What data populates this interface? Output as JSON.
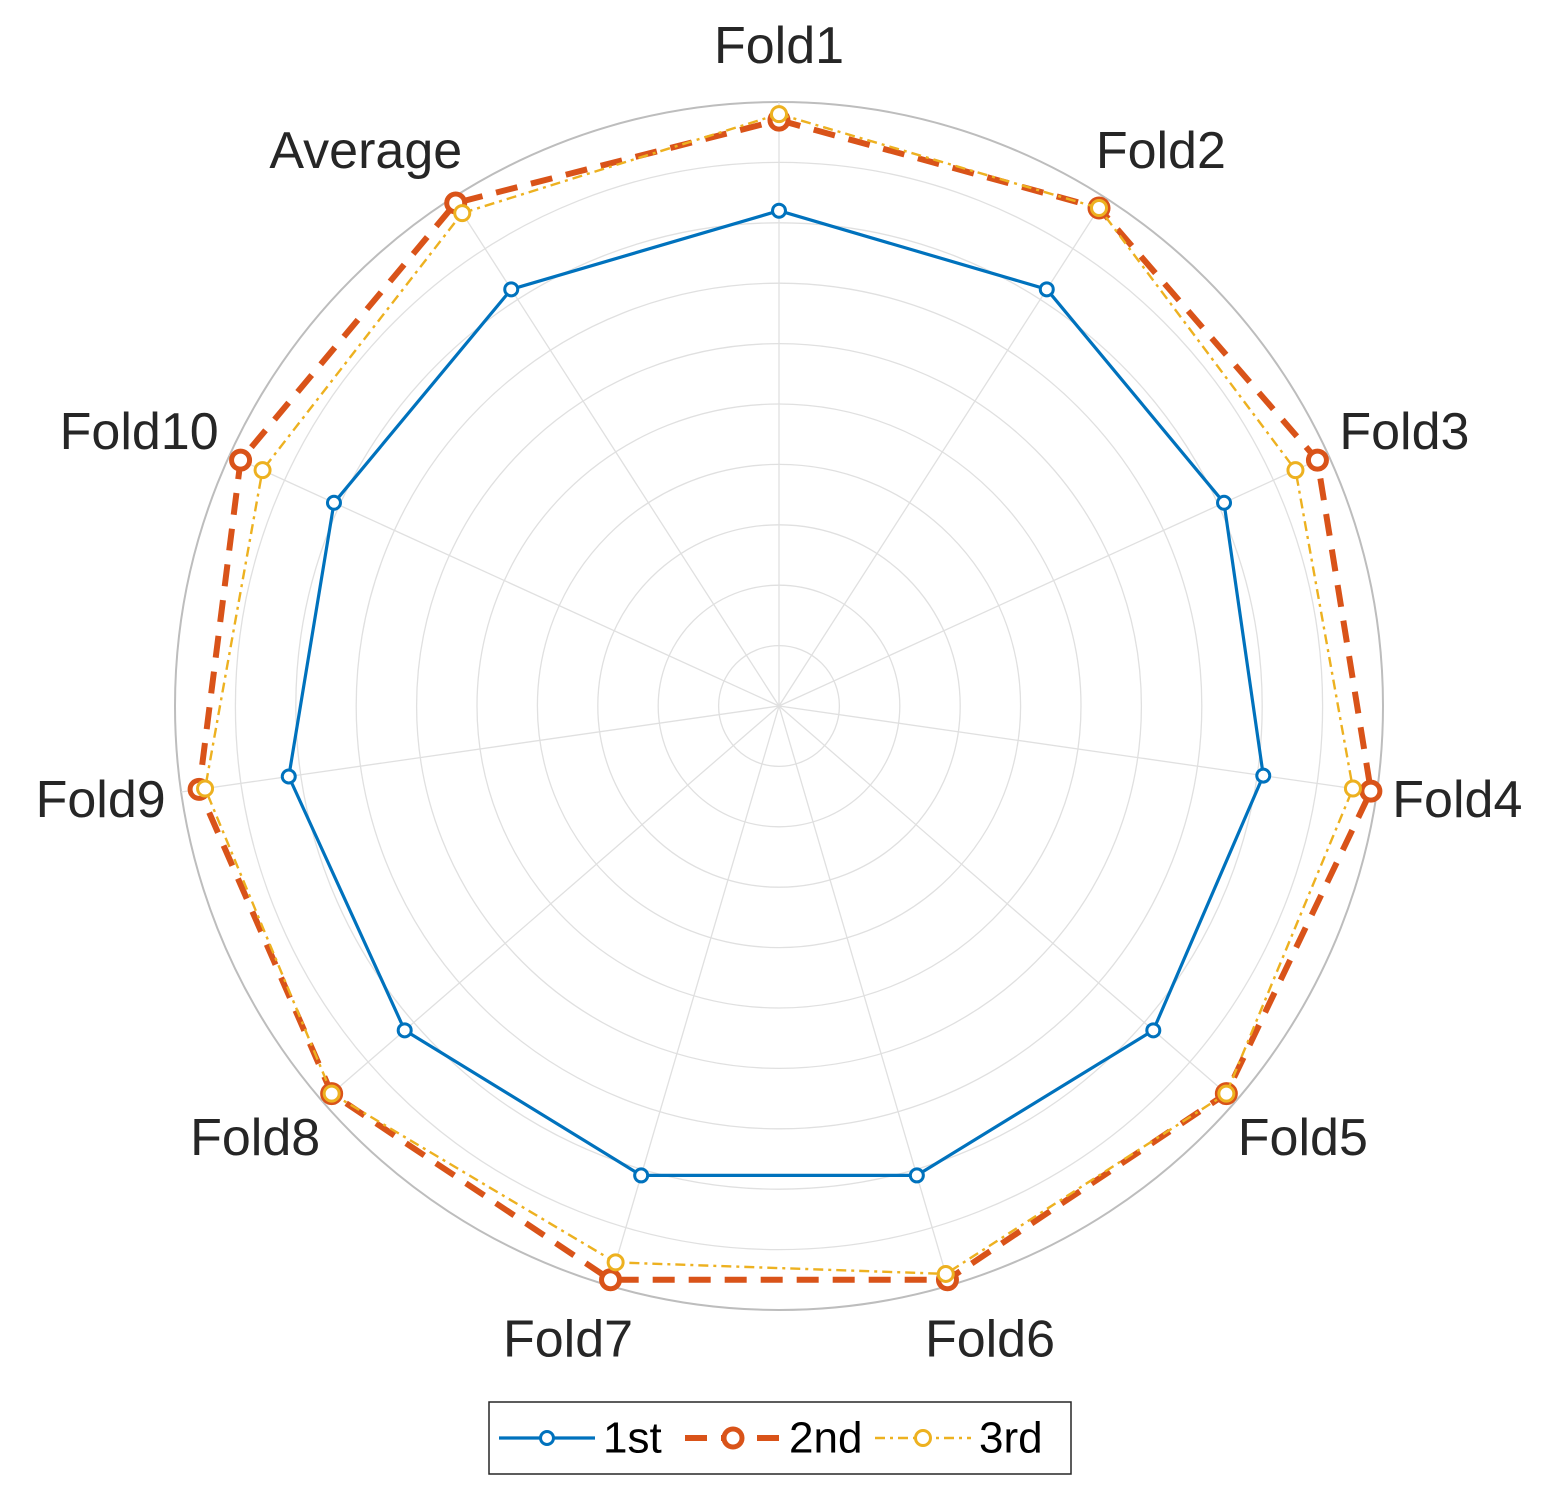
{
  "chart_data": {
    "type": "radar",
    "categories": [
      "Fold1",
      "Fold2",
      "Fold3",
      "Fold4",
      "Fold5",
      "Fold6",
      "Fold7",
      "Fold8",
      "Fold9",
      "Fold10",
      "Average"
    ],
    "rlim": [
      0,
      1
    ],
    "grid": true,
    "legend": "bottom",
    "series": [
      {
        "name": "1st",
        "color": "#0072BD",
        "line": "solid",
        "values": [
          0.82,
          0.82,
          0.81,
          0.81,
          0.82,
          0.81,
          0.81,
          0.82,
          0.82,
          0.81,
          0.82
        ]
      },
      {
        "name": "2nd",
        "color": "#D95319",
        "line": "dashed",
        "values": [
          0.97,
          0.98,
          0.98,
          0.99,
          0.98,
          0.99,
          0.99,
          0.98,
          0.97,
          0.98,
          0.99
        ]
      },
      {
        "name": "3rd",
        "color": "#EDB120",
        "line": "dashdot",
        "values": [
          0.98,
          0.98,
          0.94,
          0.96,
          0.98,
          0.98,
          0.96,
          0.98,
          0.96,
          0.94,
          0.97
        ]
      }
    ]
  }
}
